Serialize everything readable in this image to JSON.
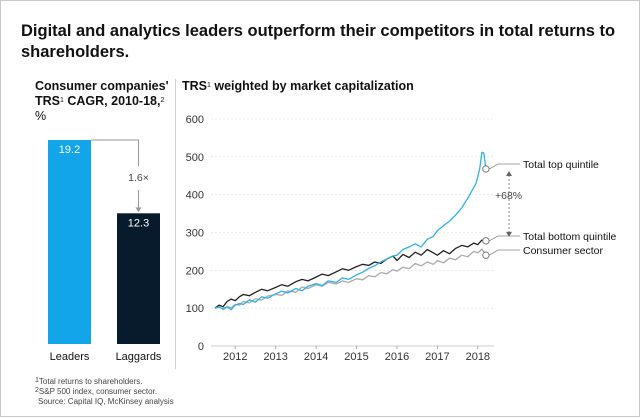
{
  "title": "Digital and analytics leaders outperform their competitors in total returns to shareholders.",
  "left_panel": {
    "heading_line1": "Consumer companies'",
    "heading_line2_pre": "TRS",
    "heading_line2_sup1": "1",
    "heading_line2_mid": " CAGR, 2010-18,",
    "heading_line2_sup2": "2",
    "unit": "%",
    "multiplier_label": "1.6×"
  },
  "right_panel": {
    "heading_pre": "TRS",
    "heading_sup": "1",
    "heading_post": " weighted by market capitalization",
    "gap_label": "+68%"
  },
  "footnotes": {
    "note1_sup": "1",
    "note1": "Total returns to shareholders.",
    "note2_sup": "2",
    "note2": "S&P 500 index, consumer sector.",
    "source": "Source: Capital IQ, McKinsey analysis"
  },
  "colors": {
    "leaders": "#12A6E8",
    "laggards": "#071B2D",
    "top_quintile": "#2FB0E8",
    "bottom_quintile": "#222222",
    "consumer_sector": "#AAAAAA",
    "axis_text": "#333333",
    "gridline": "#DDDDDD"
  },
  "chart_data": [
    {
      "type": "bar",
      "title": "Consumer companies' TRS CAGR, 2010-18, %",
      "categories": [
        "Leaders",
        "Laggards"
      ],
      "values": [
        19.2,
        12.3
      ],
      "value_labels": [
        "19.2",
        "12.3"
      ],
      "ylim": [
        0,
        22
      ],
      "annotation": "1.6×"
    },
    {
      "type": "line",
      "title": "TRS weighted by market capitalization",
      "xlabel": "",
      "ylabel": "",
      "xlim": [
        2011.4,
        2018.4
      ],
      "ylim": [
        0,
        600
      ],
      "x_ticks": [
        2012,
        2013,
        2014,
        2015,
        2016,
        2017,
        2018
      ],
      "x_tick_labels": [
        "2012",
        "2013",
        "2014",
        "2015",
        "2016",
        "2017",
        "2018"
      ],
      "y_ticks": [
        0,
        100,
        200,
        300,
        400,
        500,
        600
      ],
      "y_tick_labels": [
        "0",
        "100",
        "200",
        "300",
        "400",
        "500",
        "600"
      ],
      "series": [
        {
          "name": "Total top quintile",
          "key": "top_quintile",
          "x": [
            2011.5,
            2011.6,
            2011.7,
            2011.8,
            2011.9,
            2012.0,
            2012.1,
            2012.2,
            2012.35,
            2012.5,
            2012.65,
            2012.8,
            2013.0,
            2013.15,
            2013.3,
            2013.5,
            2013.65,
            2013.8,
            2014.0,
            2014.15,
            2014.3,
            2014.5,
            2014.65,
            2014.8,
            2015.0,
            2015.15,
            2015.3,
            2015.45,
            2015.6,
            2015.75,
            2015.9,
            2016.0,
            2016.15,
            2016.3,
            2016.45,
            2016.6,
            2016.75,
            2016.9,
            2017.0,
            2017.15,
            2017.3,
            2017.45,
            2017.6,
            2017.75,
            2017.85,
            2017.95,
            2018.0,
            2018.05,
            2018.1,
            2018.15,
            2018.2
          ],
          "y": [
            100,
            104,
            97,
            103,
            96,
            108,
            112,
            110,
            122,
            116,
            130,
            126,
            138,
            145,
            140,
            152,
            146,
            158,
            165,
            160,
            172,
            168,
            180,
            176,
            188,
            195,
            205,
            212,
            222,
            230,
            238,
            240,
            255,
            262,
            270,
            262,
            282,
            290,
            305,
            318,
            330,
            346,
            365,
            390,
            410,
            428,
            448,
            470,
            512,
            510,
            468
          ]
        },
        {
          "name": "Total bottom quintile",
          "key": "bottom_quintile",
          "x": [
            2011.5,
            2011.6,
            2011.7,
            2011.8,
            2011.9,
            2012.0,
            2012.1,
            2012.2,
            2012.35,
            2012.5,
            2012.65,
            2012.8,
            2013.0,
            2013.15,
            2013.3,
            2013.5,
            2013.65,
            2013.8,
            2014.0,
            2014.15,
            2014.3,
            2014.5,
            2014.65,
            2014.8,
            2015.0,
            2015.15,
            2015.3,
            2015.45,
            2015.6,
            2015.75,
            2015.9,
            2016.0,
            2016.15,
            2016.3,
            2016.45,
            2016.6,
            2016.75,
            2016.9,
            2017.0,
            2017.15,
            2017.3,
            2017.45,
            2017.6,
            2017.75,
            2017.9,
            2018.0,
            2018.1,
            2018.2
          ],
          "y": [
            100,
            108,
            104,
            118,
            124,
            120,
            130,
            136,
            133,
            142,
            150,
            146,
            155,
            162,
            158,
            170,
            176,
            172,
            182,
            190,
            186,
            196,
            204,
            200,
            210,
            216,
            213,
            222,
            218,
            230,
            238,
            226,
            242,
            234,
            248,
            240,
            255,
            246,
            240,
            252,
            244,
            258,
            266,
            262,
            272,
            268,
            280,
            278
          ]
        },
        {
          "name": "Consumer sector",
          "key": "consumer_sector",
          "x": [
            2011.5,
            2011.6,
            2011.7,
            2011.8,
            2011.9,
            2012.0,
            2012.1,
            2012.2,
            2012.35,
            2012.5,
            2012.65,
            2012.8,
            2013.0,
            2013.15,
            2013.3,
            2013.5,
            2013.65,
            2013.8,
            2014.0,
            2014.15,
            2014.3,
            2014.5,
            2014.65,
            2014.8,
            2015.0,
            2015.15,
            2015.3,
            2015.45,
            2015.6,
            2015.75,
            2015.9,
            2016.0,
            2016.15,
            2016.3,
            2016.45,
            2016.6,
            2016.75,
            2016.9,
            2017.0,
            2017.15,
            2017.3,
            2017.45,
            2017.6,
            2017.75,
            2017.9,
            2018.0,
            2018.1,
            2018.2
          ],
          "y": [
            100,
            102,
            99,
            104,
            101,
            110,
            108,
            118,
            114,
            125,
            121,
            132,
            136,
            134,
            146,
            142,
            156,
            152,
            162,
            158,
            168,
            164,
            172,
            168,
            178,
            175,
            186,
            183,
            194,
            191,
            202,
            198,
            208,
            204,
            218,
            212,
            222,
            216,
            226,
            220,
            232,
            228,
            240,
            236,
            250,
            246,
            256,
            240
          ]
        }
      ]
    }
  ]
}
